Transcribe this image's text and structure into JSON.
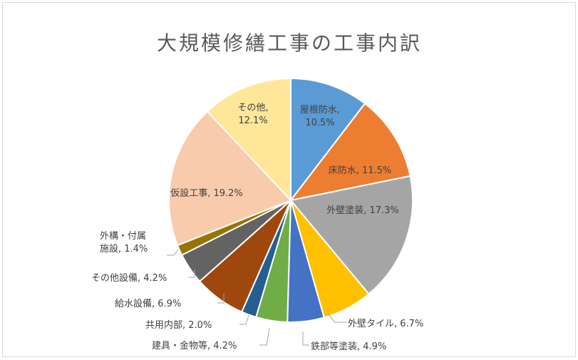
{
  "chart_data": {
    "type": "pie",
    "title": "大規模修繕工事の工事内訳",
    "slices": [
      {
        "name": "屋根防水",
        "value": 10.5,
        "label": "10.5%",
        "color": "#5b9bd5",
        "lines": [
          "屋根防水,",
          "10.5%"
        ]
      },
      {
        "name": "床防水",
        "value": 11.5,
        "label": "11.5%",
        "color": "#ed7d31",
        "lines": [
          "床防水, 11.5%"
        ]
      },
      {
        "name": "外壁塗装",
        "value": 17.3,
        "label": "17.3%",
        "color": "#a5a5a5",
        "lines": [
          "外壁塗装, 17.3%"
        ]
      },
      {
        "name": "外壁タイル",
        "value": 6.7,
        "label": "6.7%",
        "color": "#ffc000",
        "lines": [
          "外壁タイル, 6.7%"
        ]
      },
      {
        "name": "鉄部等塗装",
        "value": 4.9,
        "label": "4.9%",
        "color": "#4472c4",
        "lines": [
          "鉄部等塗装, 4.9%"
        ]
      },
      {
        "name": "建具・金物等",
        "value": 4.2,
        "label": "4.2%",
        "color": "#70ad47",
        "lines": [
          "建具・金物等, 4.2%"
        ]
      },
      {
        "name": "共用内部",
        "value": 2.0,
        "label": "2.0%",
        "color": "#255e91",
        "lines": [
          "共用内部, 2.0%"
        ]
      },
      {
        "name": "給水設備",
        "value": 6.9,
        "label": "6.9%",
        "color": "#9e480e",
        "lines": [
          "給水設備, 6.9%"
        ]
      },
      {
        "name": "その他設備",
        "value": 4.2,
        "label": "4.2%",
        "color": "#636363",
        "lines": [
          "その他設備, 4.2%"
        ]
      },
      {
        "name": "外構・付属施設",
        "value": 1.4,
        "label": "1.4%",
        "color": "#997300",
        "lines": [
          "外構・付属",
          "施設, 1.4%"
        ]
      },
      {
        "name": "仮設工事",
        "value": 19.2,
        "label": "19.2%",
        "color": "#f8cbad",
        "lines": [
          "仮設工事, 19.2%"
        ]
      },
      {
        "name": "その他",
        "value": 12.1,
        "label": "12.1%",
        "color": "#ffe699",
        "lines": [
          "その他,",
          "12.1%"
        ]
      }
    ]
  }
}
